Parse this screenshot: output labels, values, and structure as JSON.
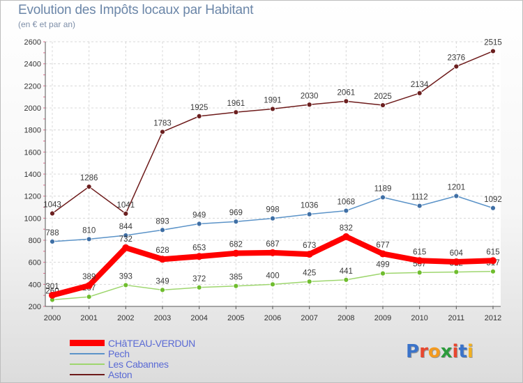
{
  "title": "Evolution des Impôts locaux par Habitant",
  "subtitle": "(en € et par an)",
  "logo": {
    "text": "Proxiti",
    "letters": [
      "P",
      "r",
      "o",
      "x",
      "i",
      "t",
      "i"
    ],
    "colors": [
      "#3b73c9",
      "#e8472f",
      "#f39a1f",
      "#2b9b3b",
      "#e8472f",
      "#3b73c9",
      "#f2b01f"
    ]
  },
  "chart_data": {
    "type": "line",
    "title": "Evolution des Impôts locaux par Habitant",
    "subtitle": "(en € et par an)",
    "xlabel": "",
    "ylabel": "",
    "x": [
      "2000",
      "2001",
      "2002",
      "2003",
      "2004",
      "2005",
      "2006",
      "2007",
      "2008",
      "2009",
      "2010",
      "2011",
      "2012"
    ],
    "ylim": [
      200,
      2600
    ],
    "yticks": [
      200,
      400,
      600,
      800,
      1000,
      1200,
      1400,
      1600,
      1800,
      2000,
      2200,
      2400,
      2600
    ],
    "grid": true,
    "legend_position": "bottom-left",
    "series": [
      {
        "name": "Aston",
        "color": "#6d1a1a",
        "marker": "#6b1f1f",
        "values": [
          1043,
          1286,
          1041,
          1783,
          1925,
          1961,
          1991,
          2030,
          2061,
          2025,
          2134,
          2376,
          2515
        ]
      },
      {
        "name": "Pech",
        "color": "#5b93c8",
        "marker": "#3f6fa5",
        "values": [
          788,
          810,
          844,
          893,
          949,
          969,
          998,
          1036,
          1068,
          1189,
          1112,
          1201,
          1092
        ]
      },
      {
        "name": "Les Cabannes",
        "color": "#9ed66e",
        "marker": "#6fbd2e",
        "values": [
          260,
          287,
          393,
          349,
          372,
          385,
          400,
          425,
          441,
          499,
          507,
          512,
          517
        ]
      },
      {
        "name": "CHâTEAU-VERDUN",
        "color": "#ff0000",
        "marker": "#ff0000",
        "values": [
          301,
          389,
          732,
          628,
          653,
          682,
          687,
          673,
          832,
          677,
          615,
          604,
          615
        ]
      }
    ],
    "value_labels": {
      "Aston": [
        "1043",
        "1286",
        "1041",
        "1783",
        "1925",
        "1961",
        "1991",
        "2030",
        "2061",
        "2025",
        "2134",
        "2376",
        "2515"
      ],
      "Pech": [
        "788",
        "810",
        "844",
        "893",
        "949",
        "969",
        "998",
        "1036",
        "1068",
        "1189",
        "1112",
        "1201",
        "1092"
      ],
      "Les Cabannes": [
        "260",
        "287",
        "393",
        "349",
        "372",
        "385",
        "400",
        "425",
        "441",
        "499",
        "507",
        "512",
        "517"
      ],
      "CHâTEAU-VERDUN": [
        "301",
        "389",
        "732",
        "628",
        "653",
        "682",
        "687",
        "673",
        "832",
        "677",
        "615",
        "604",
        "615"
      ]
    },
    "legend": [
      "CHâTEAU-VERDUN",
      "Pech",
      "Les Cabannes",
      "Aston"
    ]
  }
}
